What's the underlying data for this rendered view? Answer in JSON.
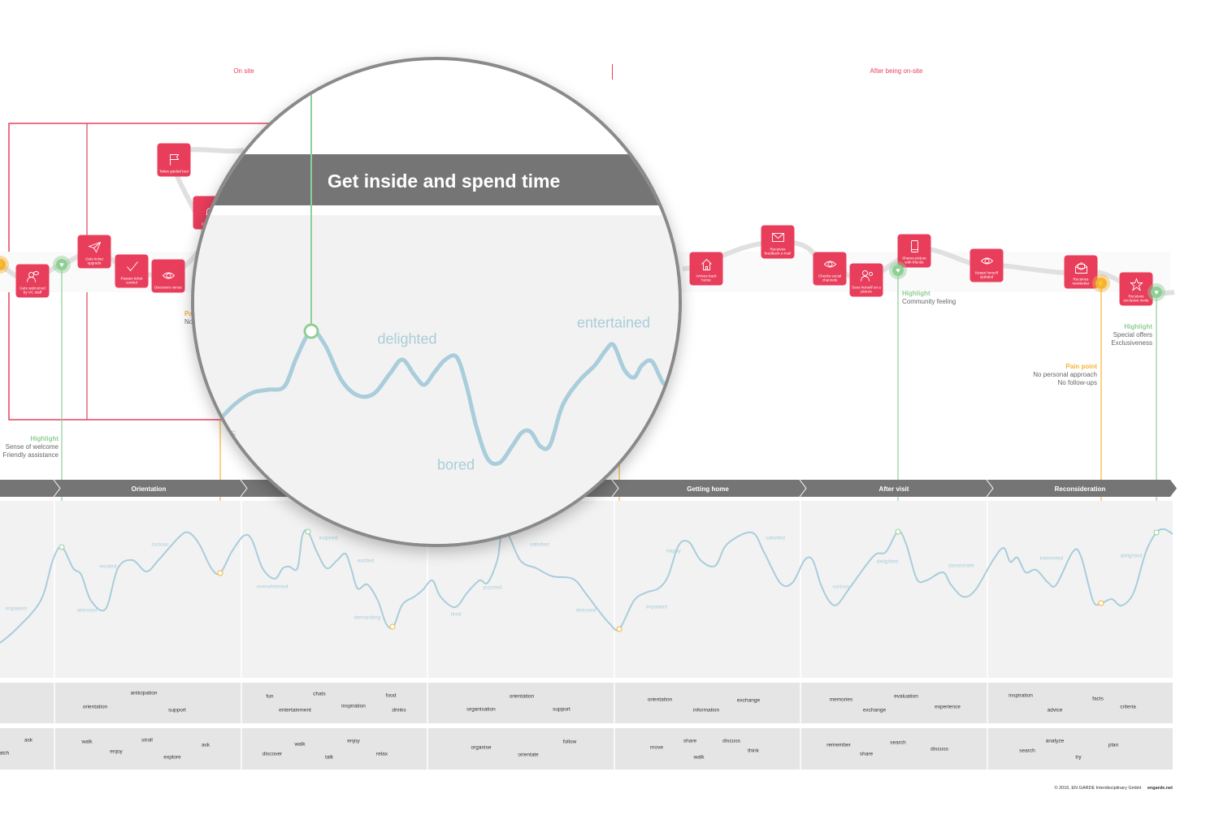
{
  "phases": {
    "on_site": "On site",
    "after": "After being on-site"
  },
  "touchpoints": [
    {
      "label": "Gets welcomed by VC staff",
      "icon": "people-chat-icon"
    },
    {
      "label": "Gets ticket upgrade",
      "icon": "paper-plane-icon"
    },
    {
      "label": "Passes ticket control",
      "icon": "checkmark-icon"
    },
    {
      "label": "Discovers venue",
      "icon": "eye-icon"
    },
    {
      "label": "Takes guided tour",
      "icon": "flag-icon"
    },
    {
      "label": "Ge not up",
      "icon": "bell-icon"
    },
    {
      "label": "Arrives back home",
      "icon": "house-icon"
    },
    {
      "label": "Receives feedback e-mail",
      "icon": "envelope-icon"
    },
    {
      "label": "Checks social channels",
      "icon": "eye-icon"
    },
    {
      "label": "Sees herself on a picture",
      "icon": "person-eye-icon"
    },
    {
      "label": "Shares picture with friends",
      "icon": "smartphone-icon"
    },
    {
      "label": "Keeps herself updated",
      "icon": "eye-icon"
    },
    {
      "label": "Receives newsletter",
      "icon": "open-envelope-icon"
    },
    {
      "label": "Receives exclusive invite",
      "icon": "star-icon"
    }
  ],
  "notes": [
    {
      "type": "Highlight",
      "lines": [
        "Sense of welcome",
        "Friendly assistance"
      ]
    },
    {
      "type": "Pa",
      "lines": [
        "No"
      ]
    },
    {
      "type": "Highlight",
      "lines": [
        "Community feeling"
      ]
    },
    {
      "type": "Highlight",
      "lines": [
        "Special offers",
        "Exclusiveness"
      ]
    },
    {
      "type": "Pain point",
      "lines": [
        "No personal approach",
        "No follow-ups"
      ]
    }
  ],
  "stages": [
    "Orientation",
    "Getting home",
    "After visit",
    "Reconsideration"
  ],
  "emotions": [
    "impatient",
    "stressed",
    "excited",
    "curious",
    "overwhelmed",
    "inspired",
    "excited",
    "demanding",
    "tired",
    "puzzled",
    "satisfied",
    "stressed",
    "happy",
    "impatient",
    "satisfied",
    "curious",
    "delighted",
    "passionate",
    "interested",
    "delighted"
  ],
  "needs": [
    "anticipation",
    "orientation",
    "support",
    "fun",
    "chats",
    "food",
    "entertainment",
    "inspiration",
    "drinks",
    "orientation",
    "organisation",
    "support",
    "orientation",
    "exchange",
    "information",
    "memories",
    "evaluation",
    "exchange",
    "experience",
    "inspiration",
    "facts",
    "criteria",
    "advice"
  ],
  "actions": [
    "ask",
    "atch",
    "walk",
    "stroll",
    "ask",
    "enjoy",
    "explore",
    "walk",
    "enjoy",
    "discover",
    "talk",
    "relax",
    "organise",
    "follow",
    "orientate",
    "move",
    "share",
    "discuss",
    "think",
    "walk",
    "remember",
    "search",
    "share",
    "discuss",
    "analyze",
    "plan",
    "search",
    "try"
  ],
  "magnifier": {
    "title": "Get inside and spend time",
    "emotions": [
      "delighted",
      "entertained",
      "bored"
    ],
    "partial": "s"
  },
  "footer": {
    "copyright": "© 2016, EN GARDE Interdisciplinary GmbH",
    "site": "engarde.net"
  },
  "colors": {
    "touchpoint": "#e83e5c",
    "highlight": "#8fcf96",
    "pain_point": "#f5b335",
    "stage_bar": "#757575",
    "emotion_curve": "#a9cddb",
    "phase_label": "#e8405e"
  }
}
